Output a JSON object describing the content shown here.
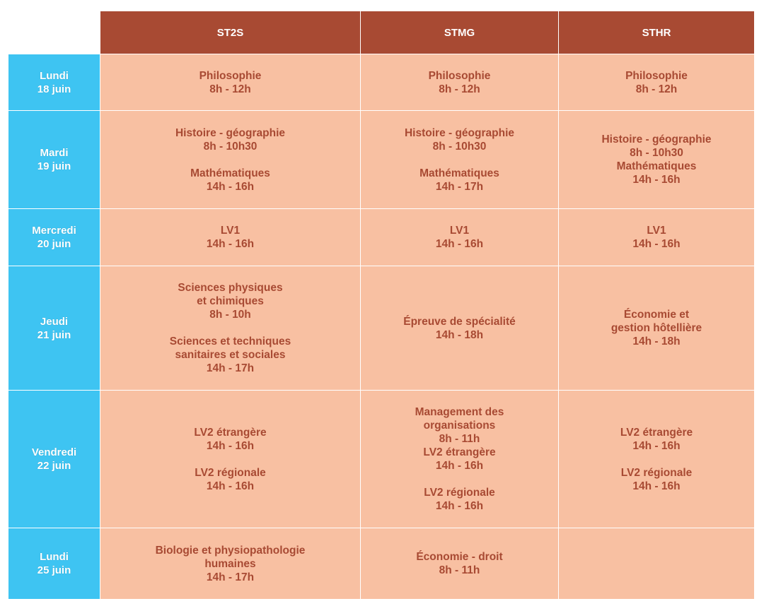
{
  "columns": [
    "ST2S",
    "STMG",
    "STHR"
  ],
  "rows": [
    {
      "day": [
        "Lundi",
        "18 juin"
      ],
      "cells": [
        [
          [
            "Philosophie",
            "8h - 12h"
          ]
        ],
        [
          [
            "Philosophie",
            "8h - 12h"
          ]
        ],
        [
          [
            "Philosophie",
            "8h - 12h"
          ]
        ]
      ]
    },
    {
      "day": [
        "Mardi",
        "19 juin"
      ],
      "cells": [
        [
          [
            "Histoire - géographie",
            "8h - 10h30"
          ],
          [
            "Mathématiques",
            "14h - 16h"
          ]
        ],
        [
          [
            "Histoire - géographie",
            "8h - 10h30"
          ],
          [
            "Mathématiques",
            "14h - 17h"
          ]
        ],
        [
          [
            "Histoire - géographie",
            "8h - 10h30",
            "Mathématiques",
            "14h - 16h"
          ]
        ]
      ]
    },
    {
      "day": [
        "Mercredi",
        "20 juin"
      ],
      "cells": [
        [
          [
            "LV1",
            "14h - 16h"
          ]
        ],
        [
          [
            "LV1",
            "14h - 16h"
          ]
        ],
        [
          [
            "LV1",
            "14h - 16h"
          ]
        ]
      ]
    },
    {
      "day": [
        "Jeudi",
        "21 juin"
      ],
      "cells": [
        [
          [
            "Sciences physiques",
            "et chimiques",
            "8h - 10h"
          ],
          [
            "Sciences et techniques",
            "sanitaires et sociales",
            "14h - 17h"
          ]
        ],
        [
          [
            "Épreuve de spécialité",
            "14h - 18h"
          ]
        ],
        [
          [
            "Économie et",
            "gestion hôtellière",
            "14h - 18h"
          ]
        ]
      ]
    },
    {
      "day": [
        "Vendredi",
        "22 juin"
      ],
      "cells": [
        [
          [
            "LV2 étrangère",
            "14h - 16h"
          ],
          [
            "LV2 régionale",
            "14h - 16h"
          ]
        ],
        [
          [
            "Management des",
            "organisations",
            "8h - 11h",
            "LV2 étrangère",
            "14h - 16h"
          ],
          [
            "LV2 régionale",
            "14h - 16h"
          ]
        ],
        [
          [
            "LV2 étrangère",
            "14h - 16h"
          ],
          [
            "LV2 régionale",
            "14h - 16h"
          ]
        ]
      ]
    },
    {
      "day": [
        "Lundi",
        "25 juin"
      ],
      "cells": [
        [
          [
            "Biologie et physiopathologie",
            "humaines",
            "14h - 17h"
          ]
        ],
        [
          [
            "Économie - droit",
            "8h - 11h"
          ]
        ],
        []
      ]
    }
  ]
}
